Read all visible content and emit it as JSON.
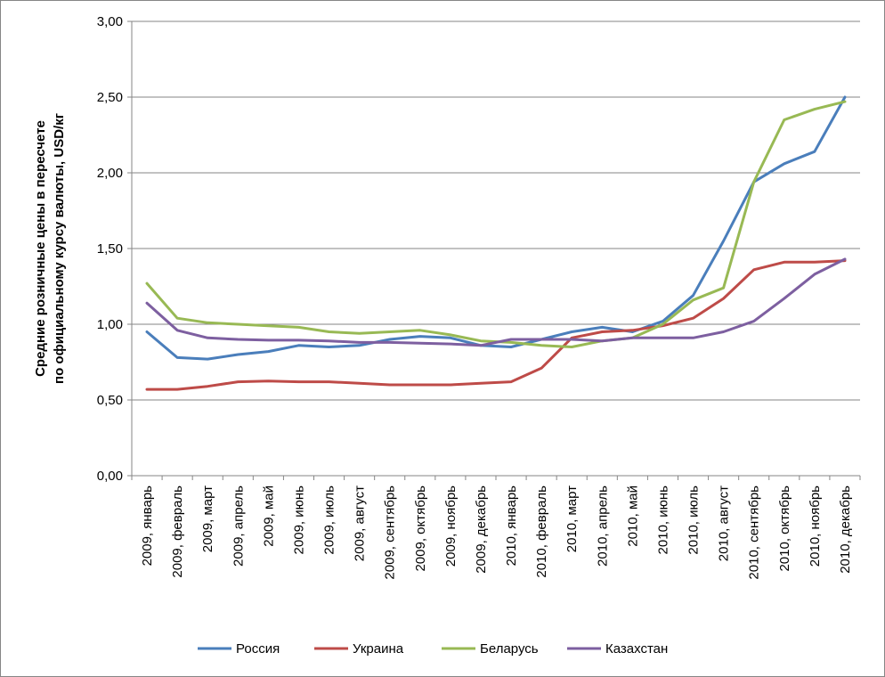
{
  "chart_data": {
    "type": "line",
    "title": "",
    "xlabel": "",
    "ylabel": "Средние розничные цены в пересчете по официальному курсу валюты, USD/кг",
    "ylabel_lines": [
      "Средние розничные цены в пересчете",
      "по официальному курсу валюты, USD/кг"
    ],
    "ylim": [
      0,
      3
    ],
    "y_ticks": [
      {
        "value": 0,
        "label": "0,00"
      },
      {
        "value": 0.5,
        "label": "0,50"
      },
      {
        "value": 1,
        "label": "1,00"
      },
      {
        "value": 1.5,
        "label": "1,50"
      },
      {
        "value": 2,
        "label": "2,00"
      },
      {
        "value": 2.5,
        "label": "2,50"
      },
      {
        "value": 3,
        "label": "3,00"
      }
    ],
    "grid": "horizontal",
    "legend_position": "bottom",
    "categories": [
      "2009, январь",
      "2009, февраль",
      "2009, март",
      "2009, апрель",
      "2009, май",
      "2009, июнь",
      "2009, июль",
      "2009, август",
      "2009, сентябрь",
      "2009, октябрь",
      "2009, ноябрь",
      "2009, декабрь",
      "2010, январь",
      "2010, февраль",
      "2010, март",
      "2010, апрель",
      "2010, май",
      "2010, июнь",
      "2010, июль",
      "2010, август",
      "2010, сентябрь",
      "2010, октябрь",
      "2010, ноябрь",
      "2010, декабрь"
    ],
    "series": [
      {
        "name": "Россия",
        "color": "#4A7EBB",
        "values": [
          0.95,
          0.78,
          0.77,
          0.8,
          0.82,
          0.86,
          0.85,
          0.86,
          0.9,
          0.92,
          0.91,
          0.86,
          0.85,
          0.9,
          0.95,
          0.98,
          0.95,
          1.02,
          1.19,
          1.55,
          1.94,
          2.06,
          2.14,
          2.5
        ]
      },
      {
        "name": "Украина",
        "color": "#BE4B48",
        "values": [
          0.57,
          0.57,
          0.59,
          0.62,
          0.625,
          0.62,
          0.62,
          0.61,
          0.6,
          0.6,
          0.6,
          0.61,
          0.62,
          0.71,
          0.91,
          0.95,
          0.96,
          0.99,
          1.04,
          1.17,
          1.36,
          1.41,
          1.41,
          1.42
        ]
      },
      {
        "name": "Беларусь",
        "color": "#98B954",
        "values": [
          1.27,
          1.04,
          1.01,
          1.0,
          0.99,
          0.98,
          0.95,
          0.94,
          0.95,
          0.96,
          0.93,
          0.89,
          0.88,
          0.86,
          0.85,
          0.89,
          0.91,
          1.0,
          1.16,
          1.24,
          1.94,
          2.35,
          2.42,
          2.47
        ]
      },
      {
        "name": "Казахстан",
        "color": "#7D5FA0",
        "values": [
          1.14,
          0.96,
          0.91,
          0.9,
          0.895,
          0.895,
          0.89,
          0.88,
          0.88,
          0.875,
          0.87,
          0.86,
          0.9,
          0.9,
          0.9,
          0.89,
          0.91,
          0.91,
          0.91,
          0.95,
          1.02,
          1.17,
          1.33,
          1.43
        ]
      }
    ]
  }
}
